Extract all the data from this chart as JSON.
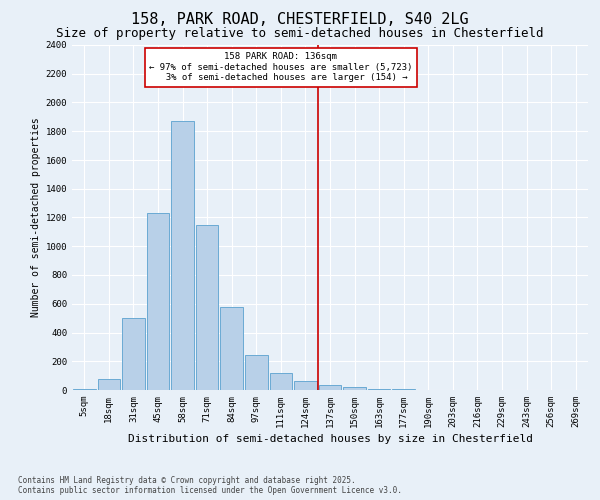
{
  "title1": "158, PARK ROAD, CHESTERFIELD, S40 2LG",
  "title2": "Size of property relative to semi-detached houses in Chesterfield",
  "xlabel": "Distribution of semi-detached houses by size in Chesterfield",
  "ylabel": "Number of semi-detached properties",
  "footnote": "Contains HM Land Registry data © Crown copyright and database right 2025.\nContains public sector information licensed under the Open Government Licence v3.0.",
  "bar_labels": [
    "5sqm",
    "18sqm",
    "31sqm",
    "45sqm",
    "58sqm",
    "71sqm",
    "84sqm",
    "97sqm",
    "111sqm",
    "124sqm",
    "137sqm",
    "150sqm",
    "163sqm",
    "177sqm",
    "190sqm",
    "203sqm",
    "216sqm",
    "229sqm",
    "243sqm",
    "256sqm",
    "269sqm"
  ],
  "bar_values": [
    10,
    80,
    500,
    1230,
    1870,
    1145,
    580,
    245,
    115,
    60,
    35,
    20,
    10,
    5,
    3,
    2,
    1,
    0,
    0,
    0,
    0
  ],
  "bar_color": "#b8d0e8",
  "bar_edge_color": "#6aaad4",
  "n_smaller": 5723,
  "n_larger": 154,
  "pct_smaller": 97,
  "pct_larger": 3,
  "property_sqm": 136,
  "property_label": "158 PARK ROAD: 136sqm",
  "vline_color": "#cc0000",
  "ann_edge_color": "#cc0000",
  "ylim": [
    0,
    2400
  ],
  "yticks": [
    0,
    200,
    400,
    600,
    800,
    1000,
    1200,
    1400,
    1600,
    1800,
    2000,
    2200,
    2400
  ],
  "bg_color": "#e8f0f8",
  "grid_color": "#ffffff",
  "title1_fontsize": 11,
  "title2_fontsize": 9,
  "ylabel_fontsize": 7,
  "xlabel_fontsize": 8,
  "tick_fontsize": 6.5,
  "ann_fontsize": 6.5,
  "footnote_fontsize": 5.5
}
